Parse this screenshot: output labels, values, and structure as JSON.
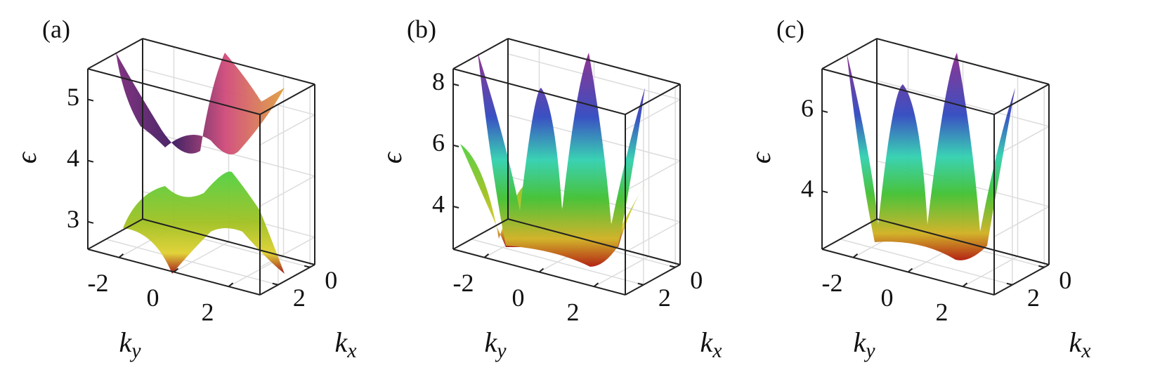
{
  "chart_data": [
    {
      "type": "surface",
      "panel_label": "(a)",
      "zlabel": "ϵ",
      "ylabel": {
        "base": "k",
        "sub": "y"
      },
      "xlabel": {
        "base": "k",
        "sub": "x"
      },
      "ylim": [
        -3.14,
        3.14
      ],
      "yticks": [
        -2,
        0,
        2
      ],
      "xlim": [
        -0.3,
        3.14
      ],
      "xticks": [
        0,
        2
      ],
      "zlim": [
        2.55,
        5.5
      ],
      "zticks": [
        3,
        4,
        5
      ],
      "grid": true
    },
    {
      "type": "surface",
      "panel_label": "(b)",
      "zlabel": "ϵ",
      "ylabel": {
        "base": "k",
        "sub": "y"
      },
      "xlabel": {
        "base": "k",
        "sub": "x"
      },
      "ylim": [
        -3.14,
        3.14
      ],
      "yticks": [
        -2,
        0,
        2
      ],
      "xlim": [
        -0.3,
        3.14
      ],
      "xticks": [
        0,
        2
      ],
      "zlim": [
        2.6,
        8.5
      ],
      "zticks": [
        4,
        6,
        8
      ],
      "grid": true
    },
    {
      "type": "surface",
      "panel_label": "(c)",
      "zlabel": "ϵ",
      "ylabel": {
        "base": "k",
        "sub": "y"
      },
      "xlabel": {
        "base": "k",
        "sub": "x"
      },
      "ylim": [
        -3.14,
        3.14
      ],
      "yticks": [
        -2,
        0,
        2
      ],
      "xlim": [
        -0.3,
        3.14
      ],
      "xticks": [
        0,
        2
      ],
      "zlim": [
        2.55,
        7.05
      ],
      "zticks": [
        4,
        6
      ],
      "grid": true
    }
  ]
}
